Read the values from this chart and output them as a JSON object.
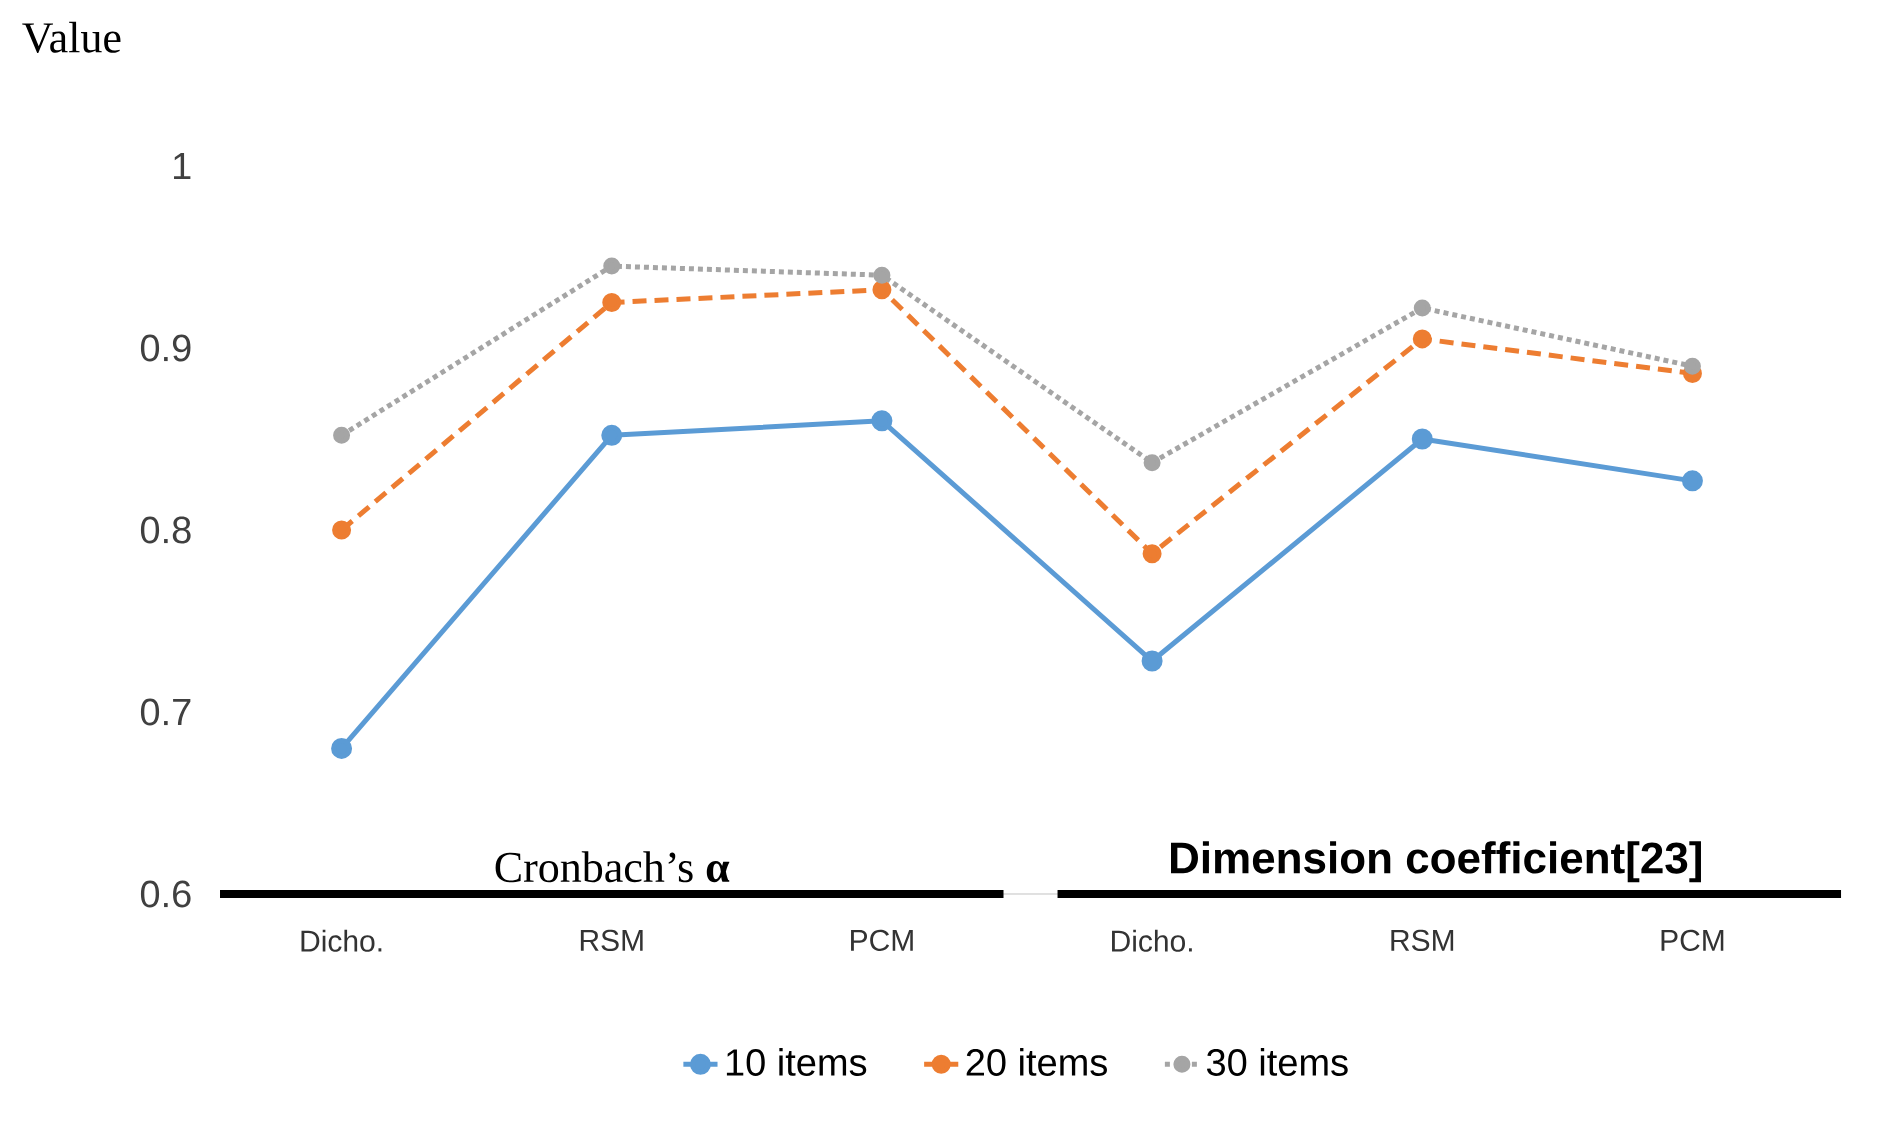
{
  "chart_data": {
    "type": "line",
    "ylabel": "Value",
    "categories": [
      "Dicho.",
      "RSM",
      "PCM",
      "Dicho.",
      "RSM",
      "PCM"
    ],
    "series": [
      {
        "name": "10 items",
        "color": "#5b9bd5",
        "line_style": "solid",
        "values": [
          0.68,
          0.852,
          0.86,
          0.728,
          0.85,
          0.827
        ]
      },
      {
        "name": "20 items",
        "color": "#ed7d31",
        "line_style": "dashed",
        "values": [
          0.8,
          0.925,
          0.932,
          0.787,
          0.905,
          0.886
        ]
      },
      {
        "name": "30 items",
        "color": "#a5a5a5",
        "line_style": "dotted",
        "values": [
          0.852,
          0.945,
          0.94,
          0.837,
          0.922,
          0.89
        ]
      }
    ],
    "ylim": [
      0.6,
      1
    ],
    "yticks": [
      0.6,
      0.7,
      0.8,
      0.9,
      1
    ],
    "legend": "bottom",
    "marker": "circle",
    "annotations": [
      "Cronbach’s **α**",
      "**Dimension coefficient[23]**"
    ]
  }
}
